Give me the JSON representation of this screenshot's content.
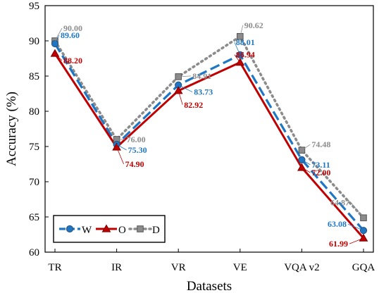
{
  "chart_data": {
    "type": "line",
    "categories": [
      "TR",
      "IR",
      "VR",
      "VE",
      "VQA v2",
      "GQA"
    ],
    "xlabel": "Datasets",
    "ylabel": "Accuracy (%)",
    "ylim": [
      60,
      95
    ],
    "yticks": [
      60,
      65,
      70,
      75,
      80,
      85,
      90,
      95
    ],
    "grid": false,
    "legend_position": "bottom-left",
    "series": [
      {
        "name": "W",
        "values": [
          89.6,
          75.3,
          83.73,
          88.01,
          73.11,
          63.08
        ],
        "labels": [
          "89.60",
          "75.30",
          "83.73",
          "88.01",
          "73.11",
          "63.08"
        ],
        "color": "#1f77c4",
        "line_style": "dashed",
        "marker": "circle"
      },
      {
        "name": "O",
        "values": [
          88.2,
          74.9,
          82.92,
          86.94,
          72.0,
          61.99
        ],
        "labels": [
          "88.20",
          "74.90",
          "82.92",
          "86.94",
          "72.00",
          "61.99"
        ],
        "color": "#c00000",
        "line_style": "solid",
        "marker": "triangle"
      },
      {
        "name": "D",
        "values": [
          90.0,
          76.0,
          84.91,
          90.62,
          74.48,
          64.87
        ],
        "labels": [
          "90.00",
          "76.00",
          "84.91",
          "90.62",
          "74.48",
          "64.87"
        ],
        "color": "#8c8c8c",
        "line_style": "dotted",
        "marker": "square"
      }
    ]
  }
}
